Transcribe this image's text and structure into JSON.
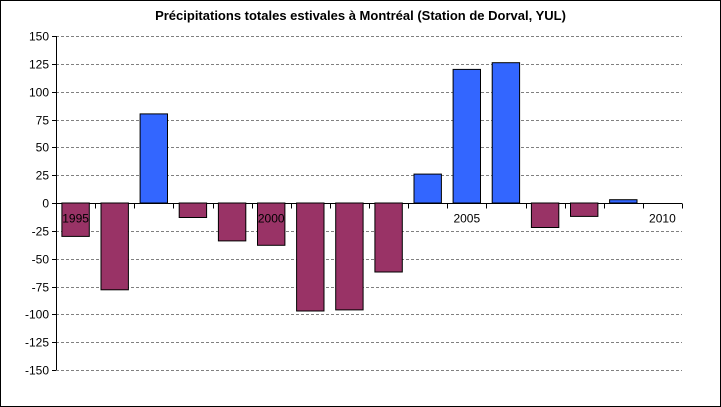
{
  "chart_data": {
    "type": "bar",
    "title": "Précipitations totales estivales à Montréal (Station de Dorval, YUL)",
    "xlabel": "",
    "ylabel": "",
    "ylim": [
      -150,
      150
    ],
    "yticks": [
      150,
      125,
      100,
      75,
      50,
      25,
      0,
      -25,
      -50,
      -75,
      -100,
      -125,
      -150
    ],
    "categories": [
      "1995",
      "1996",
      "1997",
      "1998",
      "1999",
      "2000",
      "2001",
      "2002",
      "2003",
      "2004",
      "2005",
      "2006",
      "2007",
      "2008",
      "2009",
      "2010"
    ],
    "x_tick_labels": [
      {
        "category": "1995",
        "text": "1995"
      },
      {
        "category": "2000",
        "text": "2000"
      },
      {
        "category": "2005",
        "text": "2005"
      },
      {
        "category": "2010",
        "text": "2010"
      }
    ],
    "values": [
      -30,
      -78,
      80,
      -13,
      -34,
      -38,
      -97,
      -96,
      -62,
      26,
      120,
      126,
      -22,
      -12,
      3,
      0
    ],
    "grid": true,
    "grid_style": "dashed",
    "legend": "none",
    "colors": {
      "positive": "#3366ff",
      "negative": "#993366",
      "outline": "#000000",
      "grid": "#808080"
    }
  }
}
